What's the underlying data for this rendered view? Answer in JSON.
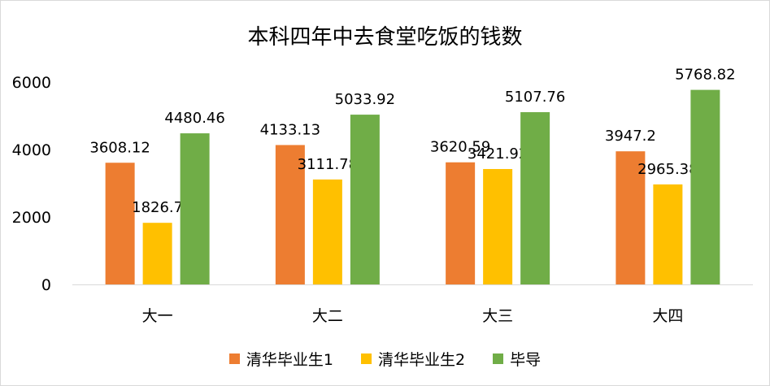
{
  "chart_data": {
    "type": "bar",
    "title": "本科四年中去食堂吃饭的钱数",
    "categories": [
      "大一",
      "大二",
      "大三",
      "大四"
    ],
    "series": [
      {
        "name": "清华毕业生1",
        "color": "#ED7D31",
        "values": [
          3608.12,
          4133.13,
          3620.59,
          3947.2
        ],
        "labels": [
          "3608.12",
          "4133.13",
          "3620.59",
          "3947.2"
        ]
      },
      {
        "name": "清华毕业生2",
        "color": "#FFC000",
        "values": [
          1826.7,
          3111.78,
          3421.92,
          2965.38
        ],
        "labels": [
          "1826.7",
          "3111.78",
          "3421.92",
          "2965.38"
        ]
      },
      {
        "name": "毕导",
        "color": "#70AD47",
        "values": [
          4480.46,
          5033.92,
          5107.76,
          5768.82
        ],
        "labels": [
          "4480.46",
          "5033.92",
          "5107.76",
          "5768.82"
        ]
      }
    ],
    "ylim": [
      0,
      6000
    ],
    "yticks": [
      "0",
      "2000",
      "4000",
      "6000"
    ],
    "grid": false,
    "legend": "bottom"
  }
}
